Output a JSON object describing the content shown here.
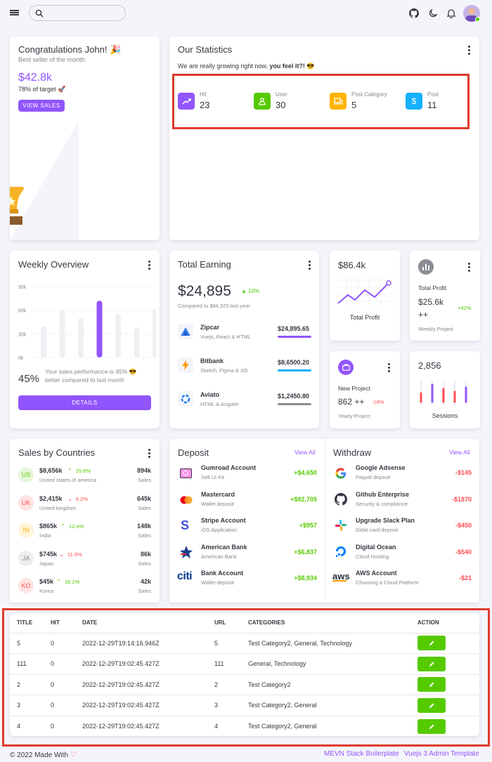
{
  "header": {
    "search_placeholder": ""
  },
  "congrats": {
    "title": "Congratulations John! 🎉",
    "subtitle": "Best seller of the month",
    "amount": "$42.8k",
    "target": "78% of target 🚀",
    "button": "VIEW SALES"
  },
  "stats": {
    "title": "Our Statistics",
    "tagline": "We are really growing right now, ",
    "tagline_bold": "you feel it?!",
    "tagline_emoji": " 😎",
    "items": [
      {
        "label": "Hit",
        "value": "23",
        "color": "#9155fd"
      },
      {
        "label": "User",
        "value": "30",
        "color": "#56ca00"
      },
      {
        "label": "Post Category",
        "value": "5",
        "color": "#ffb400"
      },
      {
        "label": "Post",
        "value": "11",
        "color": "#16b1ff"
      }
    ]
  },
  "weekly": {
    "title": "Weekly Overview",
    "y_ticks": [
      "90k",
      "60k",
      "30k",
      "0k"
    ],
    "percent": "45%",
    "text": "Your sales performance is 45% 😎 better compared to last month",
    "button": "DETAILS",
    "chart_data": {
      "type": "bar",
      "values": [
        40,
        60,
        50,
        72,
        55,
        38,
        62
      ],
      "highlight_index": 3,
      "ylim": [
        0,
        90
      ]
    }
  },
  "earning": {
    "title": "Total Earning",
    "amount": "$24,895",
    "change": "10%",
    "compared": "Compared to $84,325 last year",
    "items": [
      {
        "name": "Zipcar",
        "sub": "Vuejs, React & HTML",
        "amount": "$24,895.65",
        "bar_color": "#9155fd",
        "fill": 1.0
      },
      {
        "name": "Bitbank",
        "sub": "Sketch, Figma & XD",
        "amount": "$8,6500.20",
        "bar_color": "#16b1ff",
        "fill": 1.0
      },
      {
        "name": "Aviato",
        "sub": "HTML & Anguler",
        "amount": "$1,2450.80",
        "bar_color": "#8a8d93",
        "fill": 1.0
      }
    ]
  },
  "profit_line": {
    "amount": "$86.4k",
    "label": "Total Profit"
  },
  "profit_card": {
    "title": "Total Profit",
    "value": "$25.6k",
    "suffix": "++",
    "change": "+42%",
    "sub": "Weekly Project"
  },
  "project_card": {
    "title": "New Project",
    "value": "862 ++",
    "change": "-18%",
    "sub": "Yearly Project"
  },
  "sessions": {
    "value": "2,856",
    "label": "Sessions"
  },
  "countries": {
    "title": "Sales by Countries",
    "sales_label": "Sales",
    "items": [
      {
        "code": "US",
        "amount": "$8,656k",
        "dir": "up",
        "change": "25.8%",
        "country": "United states of america",
        "sales": "894k",
        "bg": "#e6f6da",
        "fg": "#56ca00"
      },
      {
        "code": "UK",
        "amount": "$2,415k",
        "dir": "down",
        "change": "6.2%",
        "country": "United kingdom",
        "sales": "645k",
        "bg": "#ffe4e4",
        "fg": "#ff4c51"
      },
      {
        "code": "IN",
        "amount": "$865k",
        "dir": "up",
        "change": "12.4%",
        "country": "India",
        "sales": "148k",
        "bg": "#fff3d9",
        "fg": "#ffb400"
      },
      {
        "code": "JA",
        "amount": "$745k",
        "dir": "down",
        "change": "11.9%",
        "country": "Japan",
        "sales": "86k",
        "bg": "#ededee",
        "fg": "#8a8d93"
      },
      {
        "code": "KO",
        "amount": "$45k",
        "dir": "up",
        "change": "16.2%",
        "country": "Korea",
        "sales": "42k",
        "bg": "#ffe4e4",
        "fg": "#ff4c51"
      }
    ]
  },
  "deposit": {
    "title": "Deposit",
    "view_all": "View All",
    "items": [
      {
        "name": "Gumroad Account",
        "sub": "Sell UI Kit",
        "amount": "+$4,650"
      },
      {
        "name": "Mastercard",
        "sub": "Wallet deposit",
        "amount": "+$92,705"
      },
      {
        "name": "Stripe Account",
        "sub": "iOS Application",
        "amount": "+$957"
      },
      {
        "name": "American Bank",
        "sub": "American Bank",
        "amount": "+$6,837"
      },
      {
        "name": "Bank Account",
        "sub": "Wallet deposit",
        "amount": "+$8,934"
      }
    ]
  },
  "withdraw": {
    "title": "Withdraw",
    "view_all": "View All",
    "items": [
      {
        "name": "Google Adsense",
        "sub": "Paypal deposit",
        "amount": "-$145"
      },
      {
        "name": "Github Enterprise",
        "sub": "Security & compliance",
        "amount": "-$1870"
      },
      {
        "name": "Upgrade Slack Plan",
        "sub": "Debit card deposit",
        "amount": "-$450"
      },
      {
        "name": "Digital Ocean",
        "sub": "Cloud Hosting",
        "amount": "-$540"
      },
      {
        "name": "AWS Account",
        "sub": "Choosing a Cloud Platform",
        "amount": "-$21"
      }
    ]
  },
  "table": {
    "headers": [
      "TITLE",
      "HIT",
      "DATE",
      "URL",
      "CATEGORIES",
      "ACTION"
    ],
    "rows": [
      [
        "5",
        "0",
        "2022-12-29T19:14:16.946Z",
        "5",
        "Test Category2, General, Technology"
      ],
      [
        "111",
        "0",
        "2022-12-29T19:02:45.427Z",
        "111",
        "General, Technology"
      ],
      [
        "2",
        "0",
        "2022-12-29T19:02:45.427Z",
        "2",
        "Test Category2"
      ],
      [
        "3",
        "0",
        "2022-12-29T19:02:45.427Z",
        "3",
        "Test Category2, General"
      ],
      [
        "4",
        "0",
        "2022-12-29T19:02:45.427Z",
        "4",
        "Test Category2, General"
      ]
    ]
  },
  "footer": {
    "left": "© 2022 Made With",
    "link1": "MEVN Stack Boilerplate",
    "link2": "Vuejs 3 Admin Template"
  }
}
